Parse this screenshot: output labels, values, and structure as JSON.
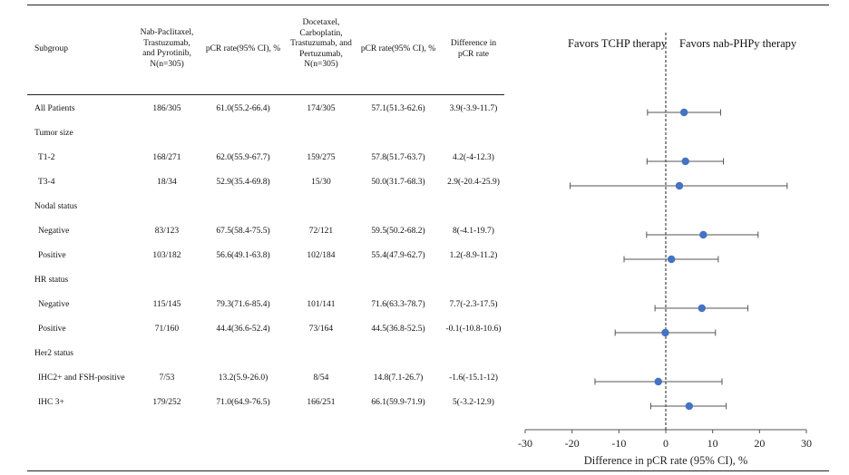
{
  "headers": {
    "subgroup": "Subgroup",
    "arm1": [
      "Nab-Paclitaxel,",
      "Trastuzumab,",
      "and Pyrotinib,",
      "N(n=305)"
    ],
    "rate1": "pCR rate(95% CI), %",
    "arm2": [
      "Docetaxel,",
      "Carboplatin,",
      "Trastuzumab, and",
      "Pertuzumab,",
      "N(n=305)"
    ],
    "rate2": "pCR rate(95% CI), %",
    "diff": [
      "Difference in",
      "pCR rate"
    ]
  },
  "rows": [
    {
      "label": "All Patients",
      "kind": "data",
      "n1": "186/305",
      "rate1": "61.0(55.2-66.4)",
      "n2": "174/305",
      "rate2": "57.1(51.3-62.6)",
      "diff": "3.9(-3.9-11.7)"
    },
    {
      "label": "Tumor size",
      "kind": "group"
    },
    {
      "label": "T1-2",
      "kind": "data",
      "n1": "168/271",
      "rate1": "62.0(55.9-67.7)",
      "n2": "159/275",
      "rate2": "57.8(51.7-63.7)",
      "diff": "4.2(-4-12.3)"
    },
    {
      "label": "T3-4",
      "kind": "data",
      "n1": "18/34",
      "rate1": "52.9(35.4-69.8)",
      "n2": "15/30",
      "rate2": "50.0(31.7-68.3)",
      "diff": "2.9(-20.4-25.9)"
    },
    {
      "label": "Nodal status",
      "kind": "group"
    },
    {
      "label": "Negative",
      "kind": "data",
      "n1": "83/123",
      "rate1": "67.5(58.4-75.5)",
      "n2": "72/121",
      "rate2": "59.5(50.2-68.2)",
      "diff": "8(-4.1-19.7)"
    },
    {
      "label": "Positive",
      "kind": "data",
      "n1": "103/182",
      "rate1": "56.6(49.1-63.8)",
      "n2": "102/184",
      "rate2": "55.4(47.9-62.7)",
      "diff": "1.2(-8.9-11.2)"
    },
    {
      "label": "HR status",
      "kind": "group"
    },
    {
      "label": "Negative",
      "kind": "data",
      "n1": "115/145",
      "rate1": "79.3(71.6-85.4)",
      "n2": "101/141",
      "rate2": "71.6(63.3-78.7)",
      "diff": "7.7(-2.3-17.5)"
    },
    {
      "label": "Positive",
      "kind": "data",
      "n1": "71/160",
      "rate1": "44.4(36.6-52.4)",
      "n2": "73/164",
      "rate2": "44.5(36.8-52.5)",
      "diff": "-0.1(-10.8-10.6)"
    },
    {
      "label": "Her2 status",
      "kind": "group"
    },
    {
      "label": "IHC2+ and FSH-positive",
      "kind": "data",
      "n1": "7/53",
      "rate1": "13.2(5.9-26.0)",
      "n2": "8/54",
      "rate2": "14.8(7.1-26.7)",
      "diff": "-1.6(-15.1-12)"
    },
    {
      "label": "IHC 3+",
      "kind": "data",
      "n1": "179/252",
      "rate1": "71.0(64.9-76.5)",
      "n2": "166/251",
      "rate2": "66.1(59.9-71.9)",
      "diff": "5(-3.2-12.9)"
    }
  ],
  "chart_data": {
    "type": "forest",
    "favors_left": "Favors TCHP therapy",
    "favors_right": "Favors nab-PHPy therapy",
    "xlabel": "Difference in pCR rate (95% CI), %",
    "xlim": [
      -30,
      30
    ],
    "xticks": [
      -30,
      -20,
      -10,
      0,
      10,
      20,
      30
    ],
    "reference_line": 0,
    "point_color": "#4472c4",
    "points": [
      {
        "row": 0,
        "estimate": 3.9,
        "lower": -3.9,
        "upper": 11.7
      },
      {
        "row": 2,
        "estimate": 4.2,
        "lower": -4,
        "upper": 12.3
      },
      {
        "row": 3,
        "estimate": 2.9,
        "lower": -20.4,
        "upper": 25.9
      },
      {
        "row": 5,
        "estimate": 8,
        "lower": -4.1,
        "upper": 19.7
      },
      {
        "row": 6,
        "estimate": 1.2,
        "lower": -8.9,
        "upper": 11.2
      },
      {
        "row": 8,
        "estimate": 7.7,
        "lower": -2.3,
        "upper": 17.5
      },
      {
        "row": 9,
        "estimate": -0.1,
        "lower": -10.8,
        "upper": 10.6
      },
      {
        "row": 11,
        "estimate": -1.6,
        "lower": -15.1,
        "upper": 12
      },
      {
        "row": 12,
        "estimate": 5,
        "lower": -3.2,
        "upper": 12.9
      }
    ]
  }
}
